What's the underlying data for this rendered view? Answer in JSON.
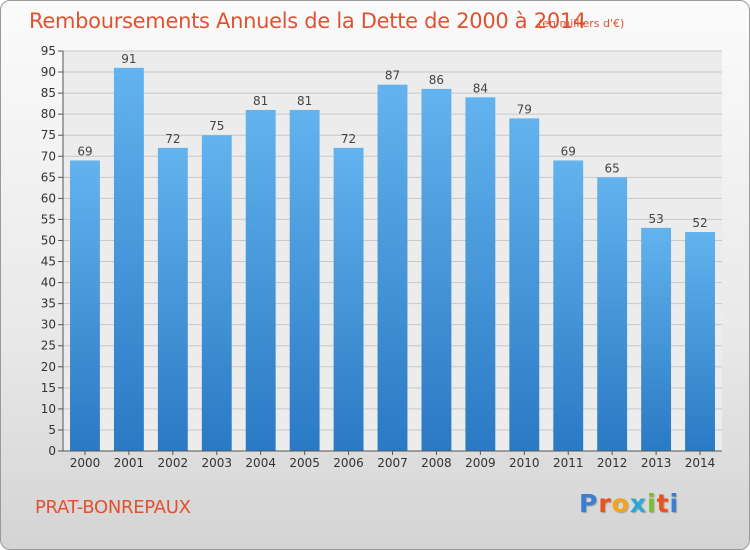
{
  "chart_data": {
    "type": "bar",
    "title": "Remboursements Annuels de la Dette de 2000 à 2014",
    "subtitle": "(en milliers d'€)",
    "categories": [
      "2000",
      "2001",
      "2002",
      "2003",
      "2004",
      "2005",
      "2006",
      "2007",
      "2008",
      "2009",
      "2010",
      "2011",
      "2012",
      "2013",
      "2014"
    ],
    "values": [
      69,
      91,
      72,
      75,
      81,
      81,
      72,
      87,
      86,
      84,
      79,
      69,
      65,
      53,
      52
    ],
    "ylim": [
      0,
      95
    ],
    "yticks": [
      0,
      5,
      10,
      15,
      20,
      25,
      30,
      35,
      40,
      45,
      50,
      55,
      60,
      65,
      70,
      75,
      80,
      85,
      90,
      95
    ],
    "grid": true,
    "bar_color": "#3a8fd9"
  },
  "footer": {
    "town": "PRAT-BONREPAUX",
    "logo": {
      "letters": [
        "P",
        "r",
        "o",
        "x",
        "i",
        "t",
        "i"
      ],
      "colors": [
        "#3b7fd0",
        "#e8521c",
        "#f2a51a",
        "#2aa9d8",
        "#7bbf2a",
        "#e8521c",
        "#3b7fd0"
      ]
    }
  }
}
